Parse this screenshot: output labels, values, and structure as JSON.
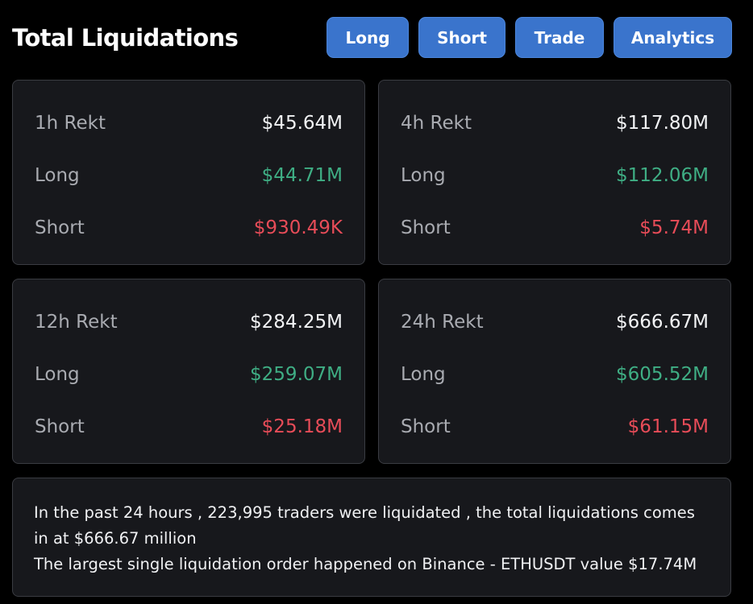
{
  "header": {
    "title": "Total Liquidations",
    "buttons": {
      "long": "Long",
      "short": "Short",
      "trade": "Trade",
      "analytics": "Analytics"
    }
  },
  "colors": {
    "accent_button": "#3a74cc",
    "long_green": "#3fae84",
    "short_red": "#e74c58",
    "card_bg": "#17181c"
  },
  "cards": [
    {
      "period_label": "1h Rekt",
      "total": "$45.64M",
      "long_label": "Long",
      "long_value": "$44.71M",
      "short_label": "Short",
      "short_value": "$930.49K"
    },
    {
      "period_label": "4h Rekt",
      "total": "$117.80M",
      "long_label": "Long",
      "long_value": "$112.06M",
      "short_label": "Short",
      "short_value": "$5.74M"
    },
    {
      "period_label": "12h Rekt",
      "total": "$284.25M",
      "long_label": "Long",
      "long_value": "$259.07M",
      "short_label": "Short",
      "short_value": "$25.18M"
    },
    {
      "period_label": "24h Rekt",
      "total": "$666.67M",
      "long_label": "Long",
      "long_value": "$605.52M",
      "short_label": "Short",
      "short_value": "$61.15M"
    }
  ],
  "summary": {
    "line1": "In the past 24 hours , 223,995 traders were liquidated , the total liquidations comes in at $666.67 million",
    "line2": "The largest single liquidation order happened on Binance - ETHUSDT value $17.74M"
  }
}
